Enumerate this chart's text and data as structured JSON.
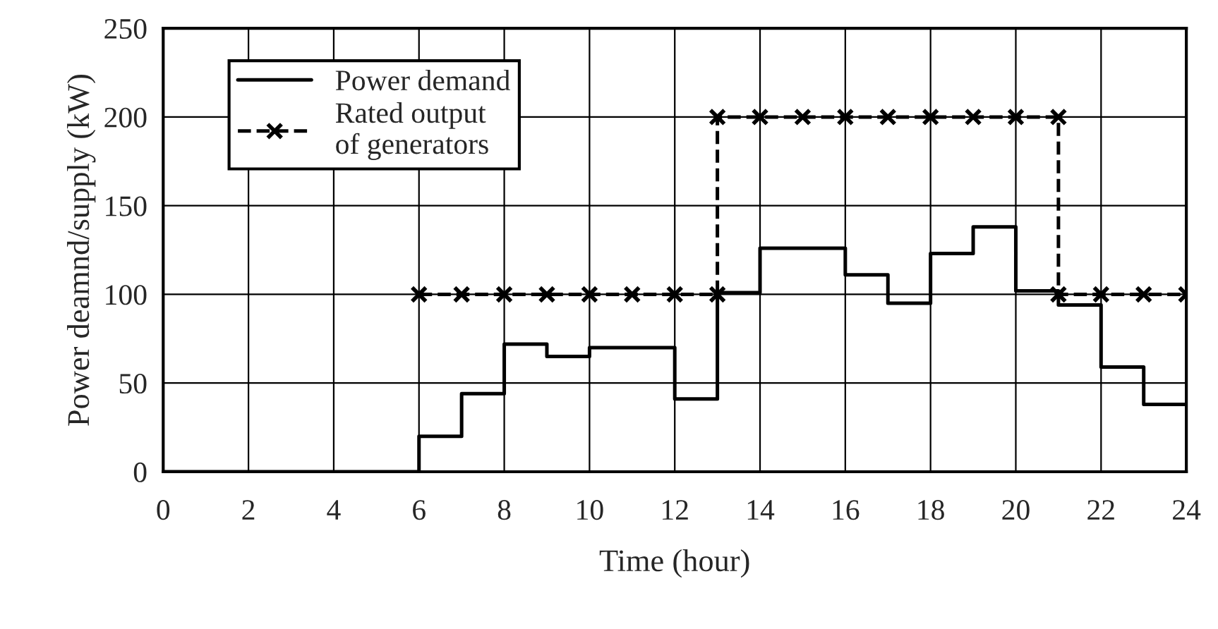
{
  "chart_data": {
    "type": "line",
    "xlabel": "Time (hour)",
    "ylabel": "Power deamnd/supply (kW)",
    "series": [
      {
        "name": "Power demand",
        "type": "step",
        "color": "#000000",
        "line_style": "solid",
        "marker": "none",
        "x": [
          0,
          1,
          2,
          3,
          4,
          5,
          6,
          7,
          8,
          9,
          10,
          11,
          12,
          13,
          14,
          15,
          16,
          17,
          18,
          19,
          20,
          21,
          22,
          23,
          24
        ],
        "values": [
          0,
          0,
          0,
          0,
          0,
          0,
          20,
          44,
          72,
          65,
          70,
          70,
          41,
          101,
          126,
          126,
          111,
          95,
          123,
          138,
          102,
          94,
          59,
          38,
          38
        ]
      },
      {
        "name": "Rated output\nof generators",
        "color": "#000000",
        "line_style": "dashed",
        "marker": "cross",
        "x": [
          6,
          7,
          8,
          9,
          10,
          11,
          12,
          13,
          13,
          14,
          15,
          16,
          17,
          18,
          19,
          20,
          21,
          21,
          22,
          23,
          24
        ],
        "values": [
          100,
          100,
          100,
          100,
          100,
          100,
          100,
          100,
          200,
          200,
          200,
          200,
          200,
          200,
          200,
          200,
          200,
          100,
          100,
          100,
          100
        ]
      }
    ],
    "xlim": [
      0,
      24
    ],
    "xticks": [
      0,
      2,
      4,
      6,
      8,
      10,
      12,
      14,
      16,
      18,
      20,
      22,
      24
    ],
    "ylim": [
      0,
      250
    ],
    "yticks": [
      0,
      50,
      100,
      150,
      200,
      250
    ],
    "grid": true,
    "legend": "top left"
  }
}
